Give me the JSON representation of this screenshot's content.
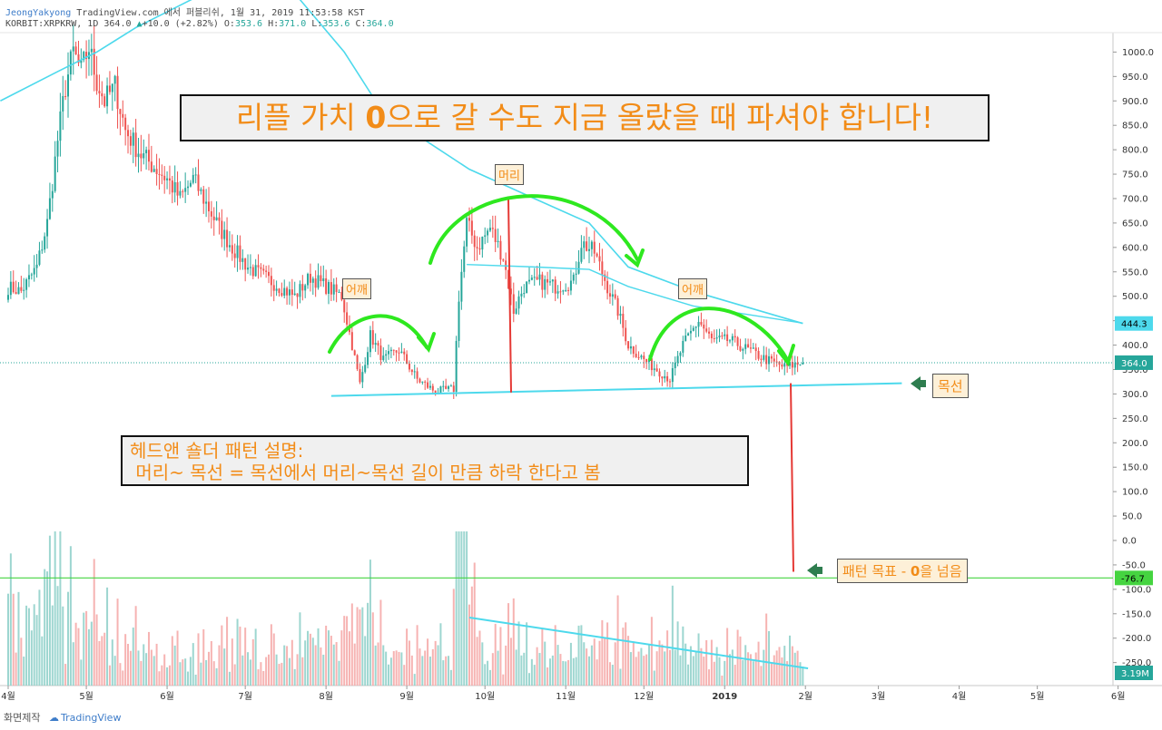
{
  "header": {
    "author": "JeongYakyong",
    "publish_text": "TradingView.com 에서 퍼블리쉬, 1월 31, 2019 11:53:58 KST",
    "symbol": "KORBIT:XRPKRW, 1D",
    "last_price": "364.0",
    "change": "+10.0 (+2.82%)",
    "o_label": "O:",
    "o_val": "353.6",
    "h_label": "H:",
    "h_val": "371.0",
    "l_label": "L:",
    "l_val": "353.6",
    "c_label": "C:",
    "c_val": "364.0"
  },
  "annotations": {
    "title_pre": "리플 가치 ",
    "title_zero": "0",
    "title_post": "으로 갈 수도 지금 올랐을 때 파셔야 합니다!",
    "desc_line1": "헤드앤 숄더 패턴 설명:",
    "desc_line2": " 머리~ 목선 = 목선에서 머리~목선 길이 만큼 하락 한다고 봄",
    "head_label": "머리",
    "left_shoulder_label": "어깨",
    "right_shoulder_label": "어깨",
    "neckline_label": "목선",
    "target_pre": "패턴 목표 - ",
    "target_zero": "0",
    "target_post": "을 넘음"
  },
  "footer": {
    "capture_label": "화면제작",
    "brand": "TradingView"
  },
  "colors": {
    "up": "#26a69a",
    "down": "#ef5350",
    "ma_line": "#4dd9ec",
    "current_price_line": "#26a69a",
    "pattern_curves": "#2ee81f",
    "target_line": "#45d440",
    "drop_line": "#e53935",
    "annotation_text": "#f28c18"
  },
  "chart_data": {
    "type": "candlestick",
    "symbol": "KORBIT:XRPKRW",
    "interval": "1D",
    "y_ticks": [
      1000,
      950,
      900,
      850,
      800,
      750,
      700,
      650,
      600,
      550,
      500,
      450,
      400,
      350,
      300,
      250,
      200,
      150,
      100,
      50,
      0,
      -50,
      -100,
      -150,
      -200,
      -250
    ],
    "x_tick_labels": [
      "4월",
      "5월",
      "6월",
      "7월",
      "8월",
      "9월",
      "10월",
      "11월",
      "12월",
      "2019",
      "2월",
      "3월",
      "4월",
      "5월",
      "6월"
    ],
    "price_labels": {
      "ma": "444.3",
      "last": "364.0",
      "target": "-76.7",
      "volume": "3.19M"
    },
    "last_close": 364.0,
    "moving_average_last": 444.3,
    "neckline": [
      {
        "x": "2018-08-03",
        "y": 296
      },
      {
        "x": "2019-03-10",
        "y": 322
      }
    ],
    "head_high": 700,
    "pattern_target": -76.7,
    "volume_trend": [
      {
        "x": "2018-09-25",
        "y": "high"
      },
      {
        "x": "2019-01-31",
        "y": "low"
      }
    ],
    "price_path": [
      [
        "2018-03-31",
        520
      ],
      [
        "2018-04-06",
        510
      ],
      [
        "2018-04-12",
        560
      ],
      [
        "2018-04-16",
        650
      ],
      [
        "2018-04-20",
        820
      ],
      [
        "2018-04-23",
        930
      ],
      [
        "2018-04-26",
        1000
      ],
      [
        "2018-04-29",
        960
      ],
      [
        "2018-05-02",
        1010
      ],
      [
        "2018-05-05",
        940
      ],
      [
        "2018-05-08",
        900
      ],
      [
        "2018-05-12",
        930
      ],
      [
        "2018-05-16",
        840
      ],
      [
        "2018-05-22",
        790
      ],
      [
        "2018-05-28",
        760
      ],
      [
        "2018-06-01",
        740
      ],
      [
        "2018-06-06",
        700
      ],
      [
        "2018-06-11",
        740
      ],
      [
        "2018-06-15",
        700
      ],
      [
        "2018-06-21",
        640
      ],
      [
        "2018-06-26",
        600
      ],
      [
        "2018-07-02",
        560
      ],
      [
        "2018-07-08",
        540
      ],
      [
        "2018-07-14",
        520
      ],
      [
        "2018-07-20",
        500
      ],
      [
        "2018-07-26",
        540
      ],
      [
        "2018-08-01",
        520
      ],
      [
        "2018-08-07",
        500
      ],
      [
        "2018-08-11",
        400
      ],
      [
        "2018-08-14",
        320
      ],
      [
        "2018-08-18",
        420
      ],
      [
        "2018-08-23",
        370
      ],
      [
        "2018-08-29",
        390
      ],
      [
        "2018-09-05",
        330
      ],
      [
        "2018-09-12",
        305
      ],
      [
        "2018-09-19",
        310
      ],
      [
        "2018-09-21",
        500
      ],
      [
        "2018-09-24",
        650
      ],
      [
        "2018-09-28",
        600
      ],
      [
        "2018-10-03",
        640
      ],
      [
        "2018-10-08",
        580
      ],
      [
        "2018-10-12",
        470
      ],
      [
        "2018-10-16",
        520
      ],
      [
        "2018-10-22",
        530
      ],
      [
        "2018-10-28",
        520
      ],
      [
        "2018-11-04",
        530
      ],
      [
        "2018-11-07",
        610
      ],
      [
        "2018-11-12",
        590
      ],
      [
        "2018-11-17",
        520
      ],
      [
        "2018-11-21",
        470
      ],
      [
        "2018-11-25",
        400
      ],
      [
        "2018-12-01",
        370
      ],
      [
        "2018-12-06",
        350
      ],
      [
        "2018-12-11",
        330
      ],
      [
        "2018-12-16",
        400
      ],
      [
        "2018-12-22",
        450
      ],
      [
        "2018-12-27",
        410
      ],
      [
        "2019-01-03",
        410
      ],
      [
        "2019-01-10",
        390
      ],
      [
        "2019-01-17",
        370
      ],
      [
        "2019-01-24",
        355
      ],
      [
        "2019-01-31",
        364
      ]
    ]
  }
}
